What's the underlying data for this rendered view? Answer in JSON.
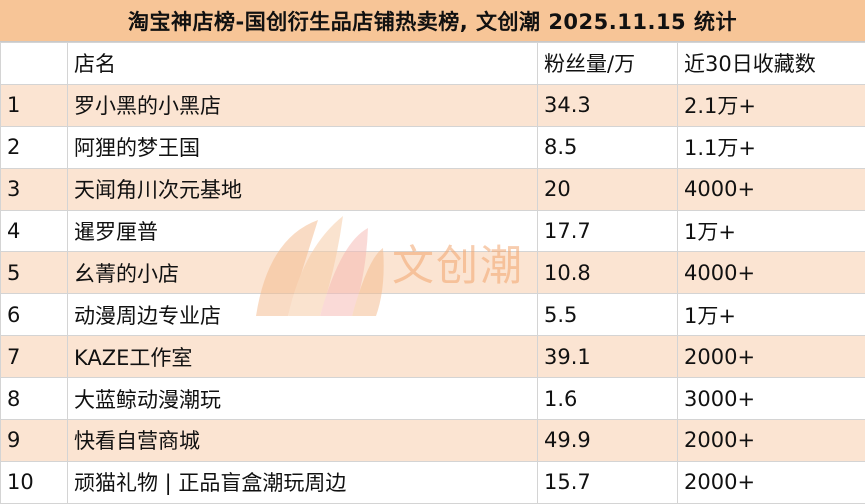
{
  "title": "淘宝神店榜-国创衍生品店铺热卖榜, 文创潮 2025.11.15 统计",
  "watermark_text": "文创潮",
  "colors": {
    "title_bg": "#f7c597",
    "stripe": "#fbe4d2",
    "watermark": "#f2a56e"
  },
  "table": {
    "headers": [
      "",
      "店名",
      "粉丝量/万",
      "近30日收藏数"
    ],
    "rows": [
      [
        "1",
        "罗小黑的小黑店",
        "34.3",
        "2.1万+"
      ],
      [
        "2",
        "阿狸的梦王国",
        "8.5",
        "1.1万+"
      ],
      [
        "3",
        "天闻角川次元基地",
        "20",
        "4000+"
      ],
      [
        "4",
        "暹罗厘普",
        "17.7",
        "1万+"
      ],
      [
        "5",
        "幺菁的小店",
        "10.8",
        "4000+"
      ],
      [
        "6",
        "动漫周边专业店",
        "5.5",
        "1万+"
      ],
      [
        "7",
        "KAZE工作室",
        "39.1",
        "2000+"
      ],
      [
        "8",
        "大蓝鲸动漫潮玩",
        "1.6",
        "3000+"
      ],
      [
        "9",
        "快看自营商城",
        "49.9",
        "2000+"
      ],
      [
        "10",
        "顽猫礼物 | 正品盲盒潮玩周边",
        "15.7",
        "2000+"
      ]
    ]
  }
}
